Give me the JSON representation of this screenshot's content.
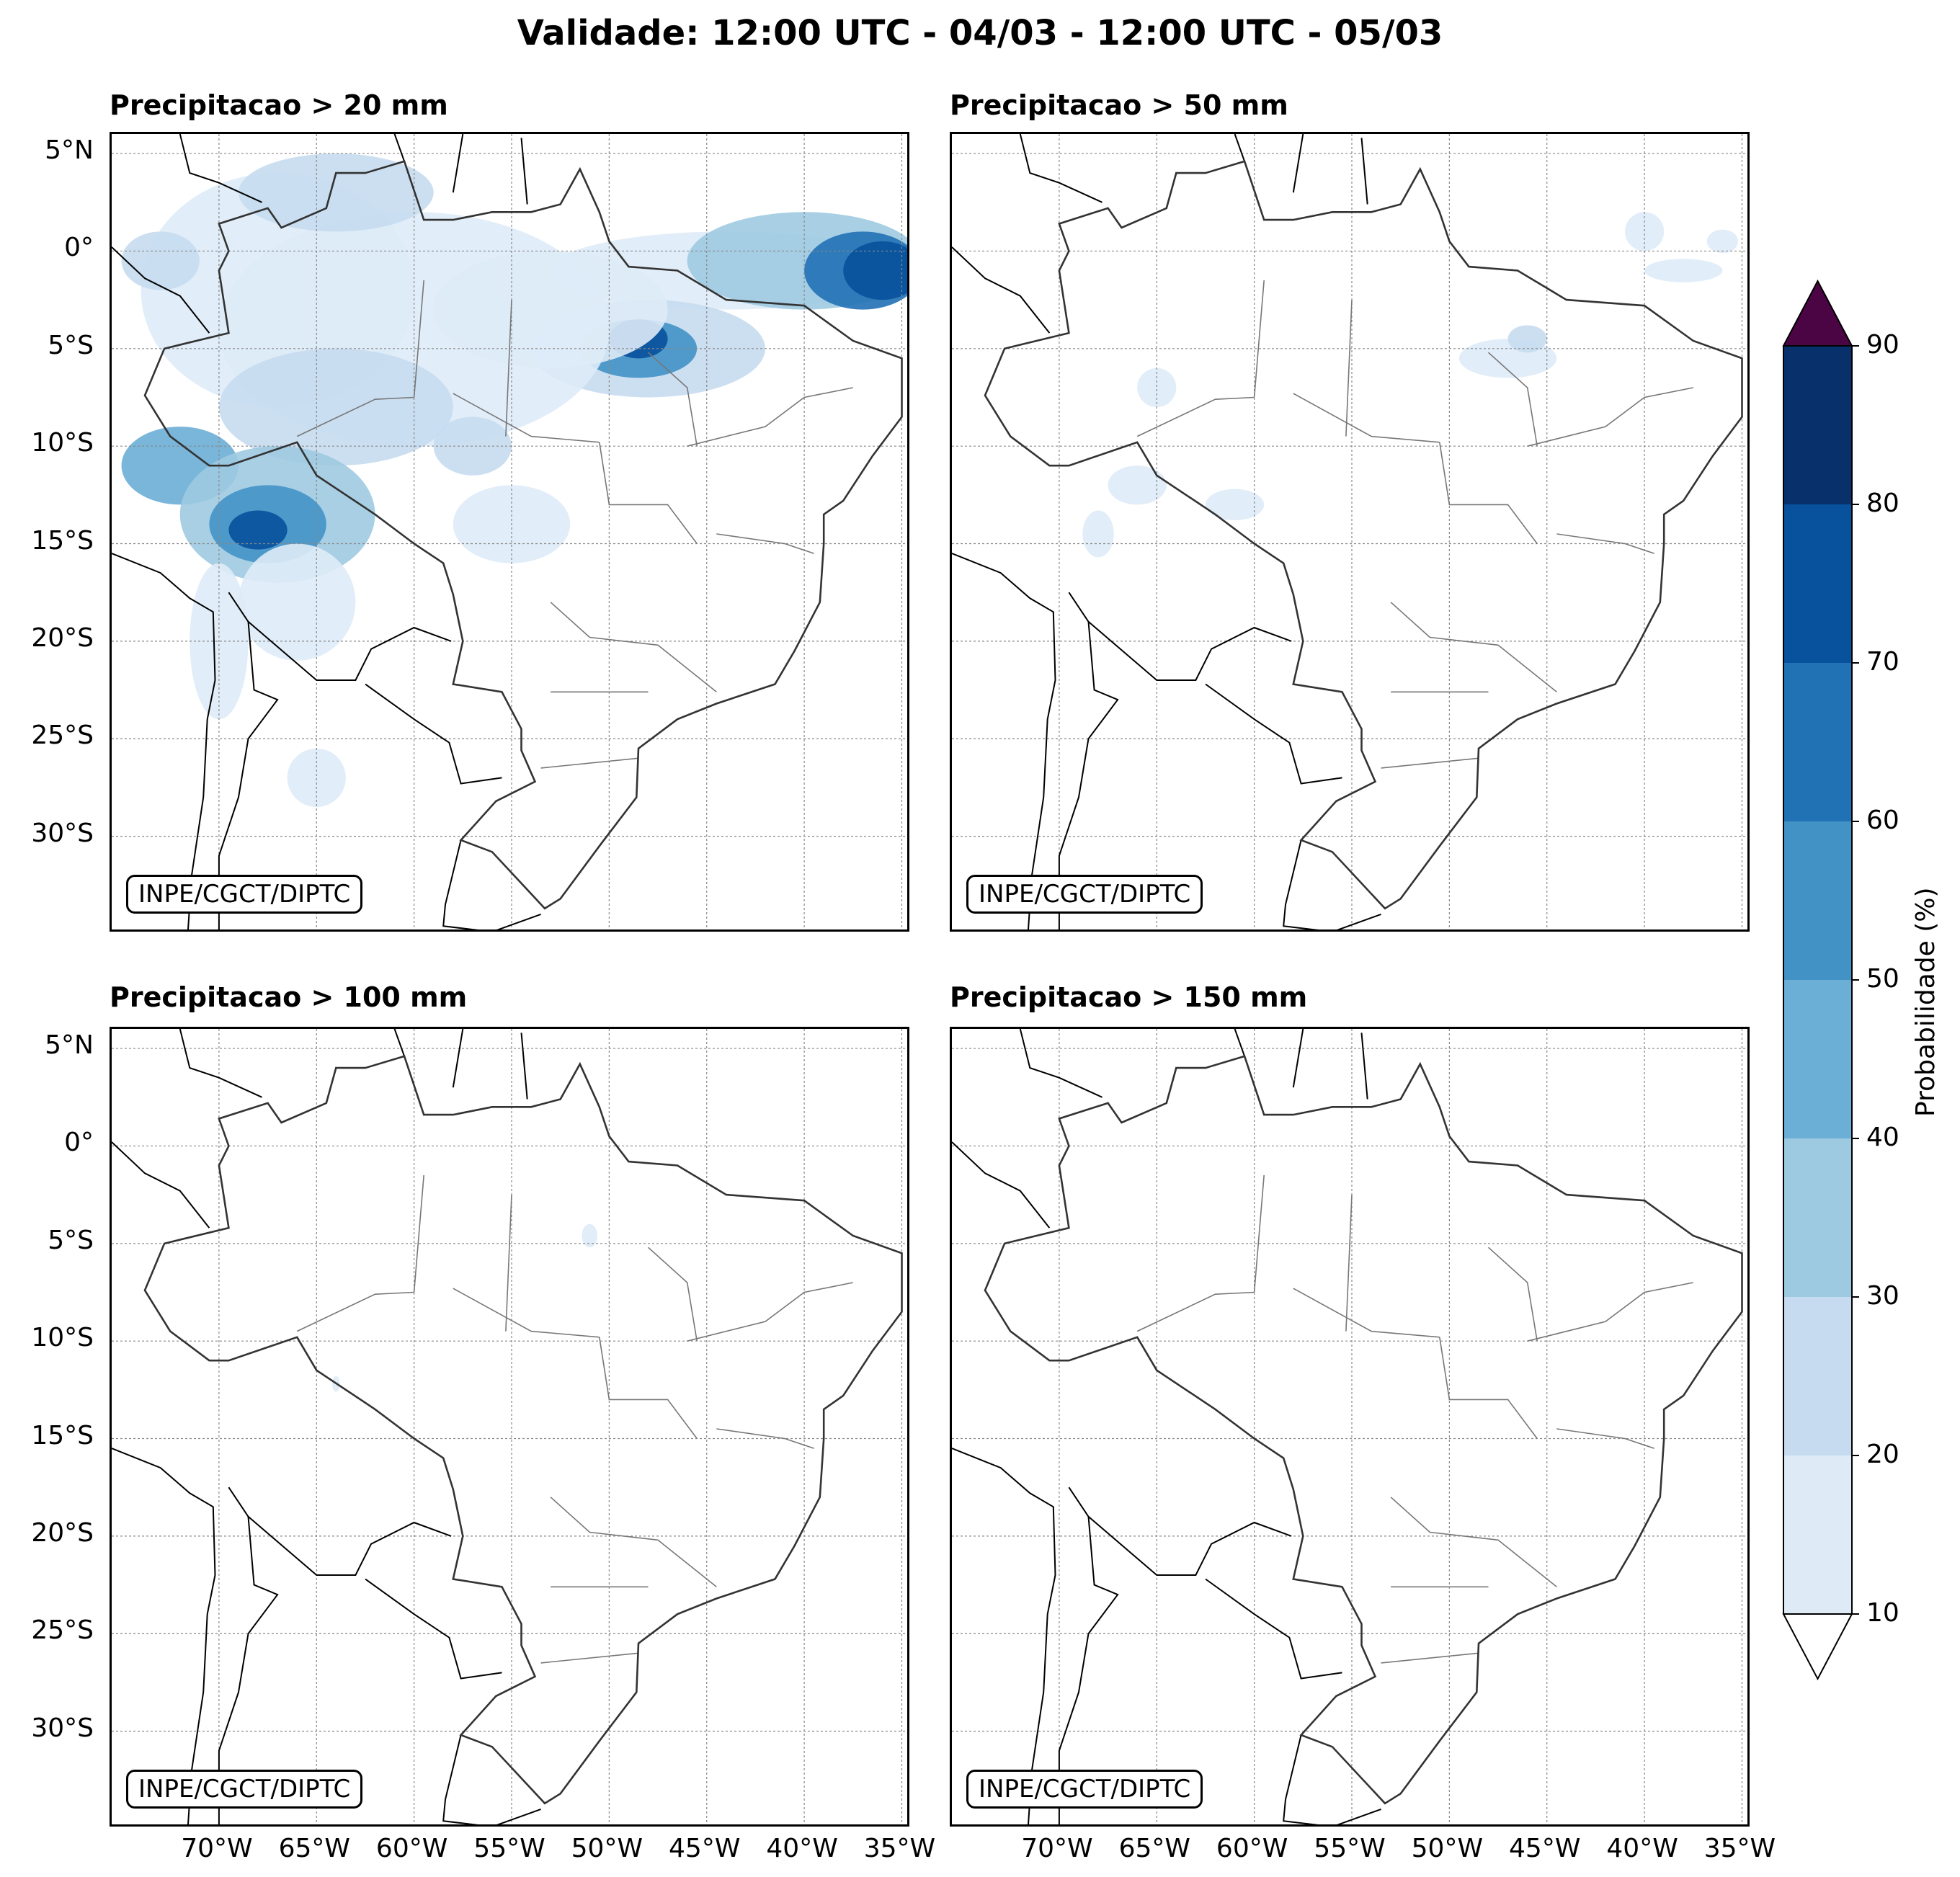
{
  "title": "Validade: 12:00 UTC - 04/03 - 12:00 UTC - 05/03",
  "credit": "INPE/CGCT/DIPTC",
  "panels": [
    {
      "title": "Precipitacao > 20 mm"
    },
    {
      "title": "Precipitacao > 50 mm"
    },
    {
      "title": "Precipitacao > 100 mm"
    },
    {
      "title": "Precipitacao > 150 mm"
    }
  ],
  "lat_labels": [
    "5°N",
    "0°",
    "5°S",
    "10°S",
    "15°S",
    "20°S",
    "25°S",
    "30°S"
  ],
  "lon_labels": [
    "70°W",
    "65°W",
    "60°W",
    "55°W",
    "50°W",
    "45°W",
    "40°W",
    "35°W"
  ],
  "colorbar": {
    "title": "Probabilidade (%)",
    "ticks": [
      "10",
      "20",
      "30",
      "40",
      "50",
      "60",
      "70",
      "80",
      "90"
    ],
    "colors": [
      "#deebf7",
      "#c6dbef",
      "#9ecae1",
      "#6baed6",
      "#4292c6",
      "#2171b5",
      "#08519c",
      "#08306b"
    ],
    "over_color": "#4b0545",
    "under_color": "#ffffff"
  }
}
